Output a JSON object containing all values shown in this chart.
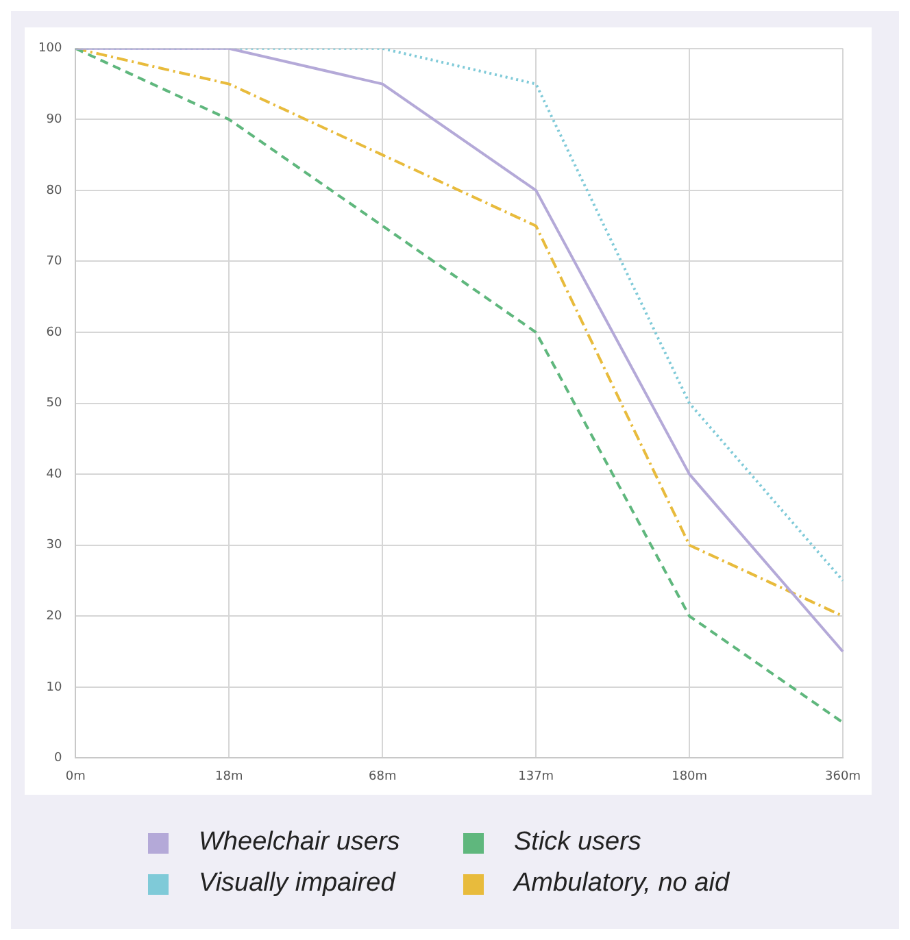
{
  "chart_data": {
    "type": "line",
    "categories": [
      "0m",
      "18m",
      "68m",
      "137m",
      "180m",
      "360m"
    ],
    "series": [
      {
        "name": "Wheelchair users",
        "color": "#b4a9d8",
        "values": [
          100,
          100,
          95,
          80,
          40,
          15
        ],
        "line_style": "solid"
      },
      {
        "name": "Stick users",
        "color": "#5fb77d",
        "values": [
          100,
          90,
          75,
          60,
          20,
          5
        ],
        "line_style": "dashed"
      },
      {
        "name": "Visually impaired",
        "color": "#7fcad8",
        "values": [
          100,
          100,
          100,
          95,
          50,
          25
        ],
        "line_style": "dotted"
      },
      {
        "name": "Ambulatory, no aid",
        "color": "#e8bb3c",
        "values": [
          100,
          95,
          85,
          75,
          30,
          20
        ],
        "line_style": "dashdot"
      }
    ],
    "ylim": [
      0,
      100
    ],
    "yticks": [
      0,
      10,
      20,
      30,
      40,
      50,
      60,
      70,
      80,
      90,
      100
    ],
    "grid": true,
    "legend": "bottom",
    "marker": "none"
  }
}
